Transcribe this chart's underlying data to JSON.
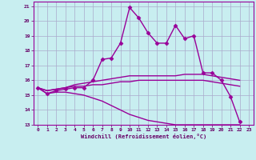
{
  "title": "",
  "xlabel": "Windchill (Refroidissement éolien,°C)",
  "background_color": "#c8eef0",
  "grid_color": "#aaaacc",
  "line_color": "#990099",
  "x_ticks": [
    0,
    1,
    2,
    3,
    4,
    5,
    6,
    7,
    8,
    9,
    10,
    11,
    12,
    13,
    14,
    15,
    16,
    17,
    18,
    19,
    20,
    21,
    22,
    23
  ],
  "y_ticks": [
    13,
    14,
    15,
    16,
    17,
    18,
    19,
    20,
    21
  ],
  "xlim": [
    -0.5,
    23.5
  ],
  "ylim": [
    13,
    21.3
  ],
  "series": [
    {
      "x": [
        0,
        1,
        2,
        3,
        4,
        5,
        6,
        7,
        8,
        9,
        10,
        11,
        12,
        13,
        14,
        15,
        16,
        17,
        18,
        19,
        20,
        21,
        22
      ],
      "y": [
        15.5,
        15.1,
        15.3,
        15.4,
        15.5,
        15.5,
        16.0,
        17.4,
        17.5,
        18.5,
        20.9,
        20.2,
        19.2,
        18.5,
        18.5,
        19.7,
        18.8,
        19.0,
        16.5,
        16.5,
        16.0,
        14.9,
        13.2
      ],
      "marker": "D",
      "markersize": 2.5,
      "lw": 1.0,
      "has_marker": true
    },
    {
      "x": [
        0,
        1,
        2,
        3,
        4,
        5,
        6,
        7,
        8,
        9,
        10,
        11,
        12,
        13,
        14,
        15,
        16,
        17,
        18,
        19,
        20,
        21,
        22
      ],
      "y": [
        15.5,
        15.3,
        15.4,
        15.5,
        15.7,
        15.8,
        15.9,
        16.0,
        16.1,
        16.2,
        16.3,
        16.3,
        16.3,
        16.3,
        16.3,
        16.3,
        16.4,
        16.4,
        16.4,
        16.3,
        16.2,
        16.1,
        16.0
      ],
      "marker": null,
      "markersize": 0,
      "lw": 1.0,
      "has_marker": false
    },
    {
      "x": [
        0,
        1,
        2,
        3,
        4,
        5,
        6,
        7,
        8,
        9,
        10,
        11,
        12,
        13,
        14,
        15,
        16,
        17,
        18,
        19,
        20,
        21,
        22
      ],
      "y": [
        15.5,
        15.3,
        15.4,
        15.5,
        15.6,
        15.6,
        15.7,
        15.7,
        15.8,
        15.9,
        15.9,
        16.0,
        16.0,
        16.0,
        16.0,
        16.0,
        16.0,
        16.0,
        16.0,
        15.9,
        15.8,
        15.7,
        15.6
      ],
      "marker": null,
      "markersize": 0,
      "lw": 1.0,
      "has_marker": false
    },
    {
      "x": [
        0,
        1,
        2,
        3,
        4,
        5,
        6,
        7,
        8,
        9,
        10,
        11,
        12,
        13,
        14,
        15,
        16,
        17,
        18,
        19,
        20,
        21,
        22
      ],
      "y": [
        15.5,
        15.1,
        15.2,
        15.2,
        15.1,
        15.0,
        14.8,
        14.6,
        14.3,
        14.0,
        13.7,
        13.5,
        13.3,
        13.2,
        13.1,
        13.0,
        13.0,
        13.0,
        13.0,
        13.0,
        13.0,
        13.0,
        13.0
      ],
      "marker": null,
      "markersize": 0,
      "lw": 1.0,
      "has_marker": false
    }
  ]
}
